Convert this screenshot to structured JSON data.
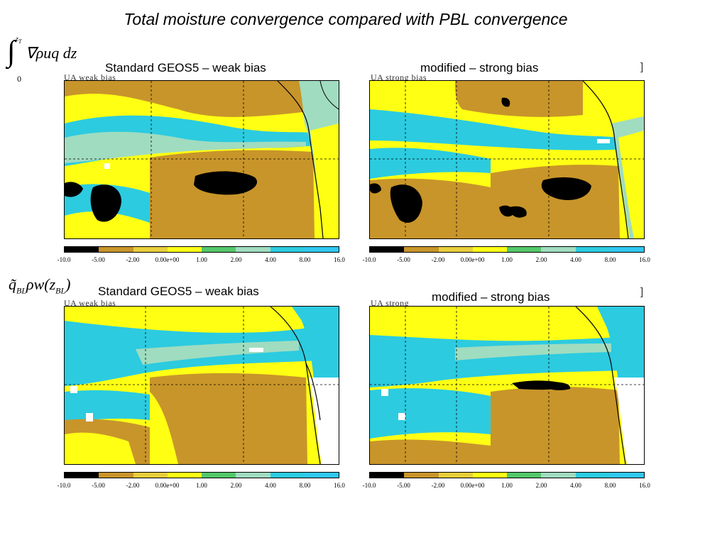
{
  "title": "Total moisture convergence compared with PBL convergence",
  "equations": {
    "integral_upper": "z",
    "integral_upper_sub": "T",
    "integral_lower": "0",
    "integral_body": "∇ρuq dz",
    "pbl_q": "q̃",
    "pbl_q_sub": "BL",
    "pbl_rest": "ρw(z",
    "pbl_z_sub": "BL",
    "pbl_close": ")"
  },
  "panels": [
    {
      "id": "top-left",
      "label": "Standard GEOS5 – weak bias",
      "head": "UA weak bias",
      "scheme": "a"
    },
    {
      "id": "top-right",
      "label": "modified – strong bias",
      "head": "UA strong bias",
      "scheme": "b"
    },
    {
      "id": "bottom-left",
      "label": "Standard GEOS5 – weak bias",
      "head": "UA weak bias",
      "scheme": "c"
    },
    {
      "id": "bottom-right",
      "label": "modified – strong bias",
      "head": "UA strong",
      "scheme": "d"
    }
  ],
  "bracket": "]",
  "colorbar": {
    "colors": [
      "#000000",
      "#c8952a",
      "#e8ce3a",
      "#ffff14",
      "#54c86a",
      "#a0dcc0",
      "#2ccbe0",
      "#30c8f0"
    ],
    "ticks": [
      "-10.0",
      "-5.00",
      "-2.00",
      "0.00e+00",
      "1.00",
      "2.00",
      "4.00",
      "8.00",
      "16.0"
    ]
  },
  "palette": {
    "black": "#000000",
    "brown": "#c8952a",
    "yellow": "#ffff14",
    "green": "#54c86a",
    "aqua": "#a0dcc0",
    "cyan": "#2ccbe0",
    "white": "#ffffff"
  }
}
